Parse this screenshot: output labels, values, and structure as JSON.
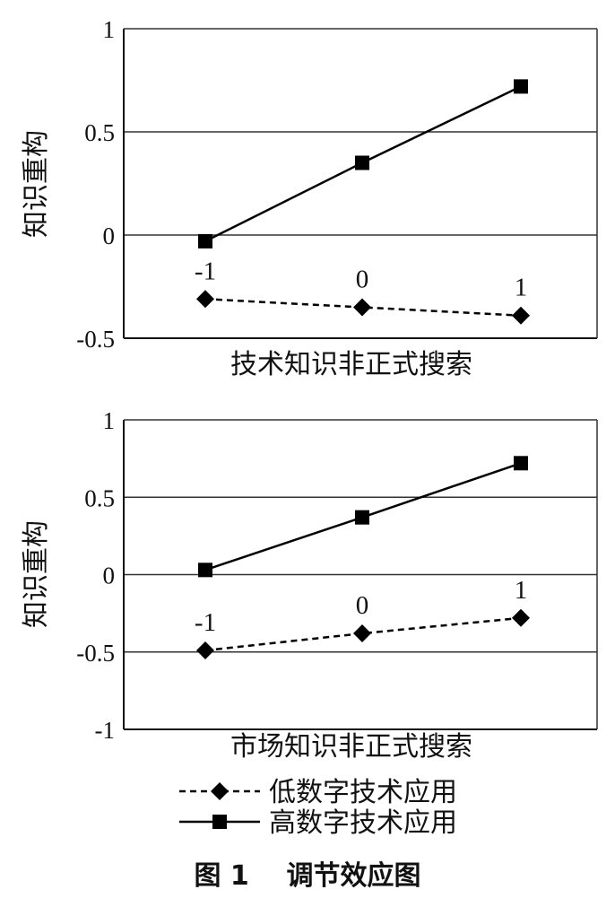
{
  "chart_data": [
    {
      "type": "line",
      "xlabel": "技术知识非正式搜索",
      "ylabel": "知识重构",
      "ylim": [
        -0.5,
        1
      ],
      "yticks": [
        "1",
        "0.5",
        "0",
        "-0.5"
      ],
      "point_labels": [
        "-1",
        "0",
        "1"
      ],
      "x": [
        -1,
        0,
        1
      ],
      "grid": true,
      "series": [
        {
          "name": "高数字技术应用",
          "values": [
            -0.03,
            0.35,
            0.72
          ]
        },
        {
          "name": "低数字技术应用",
          "values": [
            -0.31,
            -0.35,
            -0.39
          ]
        }
      ]
    },
    {
      "type": "line",
      "xlabel": "市场知识非正式搜索",
      "ylabel": "知识重构",
      "ylim": [
        -1,
        1
      ],
      "yticks": [
        "1",
        "0.5",
        "0",
        "-0.5",
        "-1"
      ],
      "point_labels": [
        "-1",
        "0",
        "1"
      ],
      "x": [
        -1,
        0,
        1
      ],
      "grid": true,
      "series": [
        {
          "name": "高数字技术应用",
          "values": [
            0.03,
            0.37,
            0.72
          ]
        },
        {
          "name": "低数字技术应用",
          "values": [
            -0.49,
            -0.38,
            -0.28
          ]
        }
      ]
    }
  ],
  "legend": {
    "items": [
      {
        "label": "低数字技术应用",
        "style": "dashed-diamond"
      },
      {
        "label": "高数字技术应用",
        "style": "solid-square"
      }
    ]
  },
  "caption": "图 1    调节效应图",
  "colors": {
    "line": "#000000",
    "grid": "#333333",
    "axis": "#111111"
  }
}
